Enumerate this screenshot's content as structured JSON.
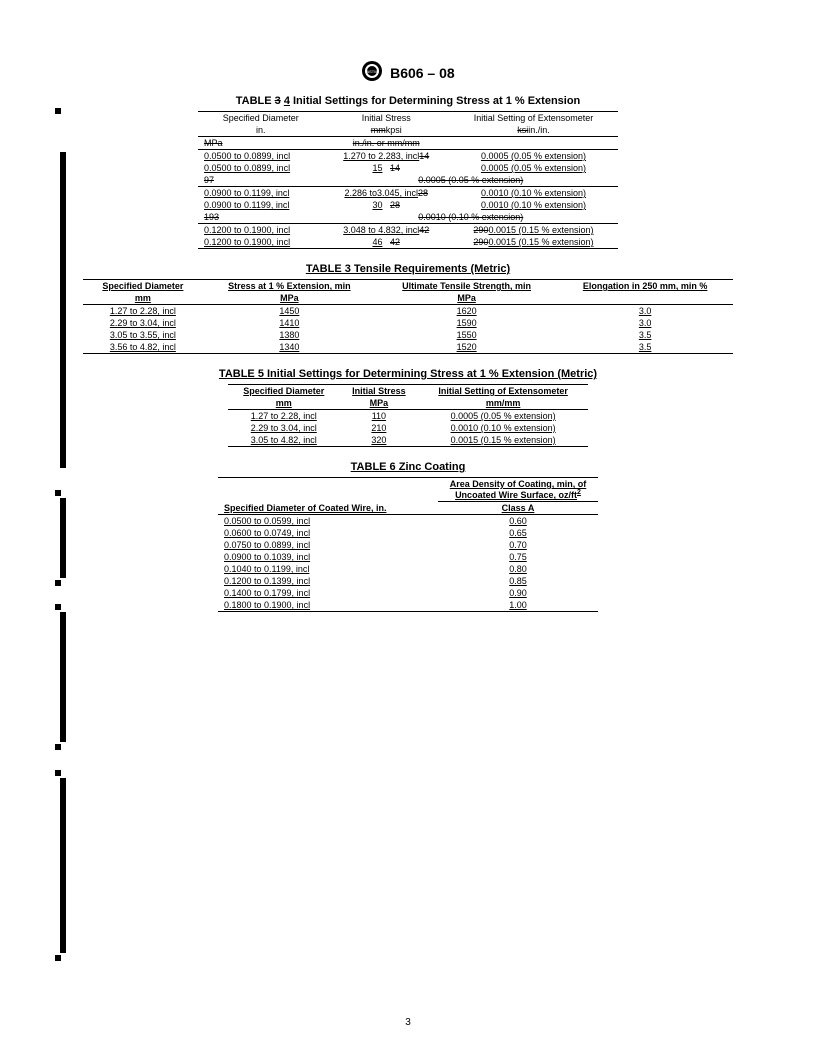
{
  "doc": {
    "designation": "B606 – 08",
    "page_number": "3"
  },
  "table4": {
    "title_prefix": "TABLE ",
    "title_old": "3",
    "title_new": "4",
    "title_rest": " Initial Settings for Determining Stress at 1 % Extension",
    "h_diam": "Specified Diameter",
    "h_diam_unit": "in.",
    "h_stress": "Initial Stress",
    "h_stress_unit_old": "mm",
    "h_stress_unit_new": "kpsi",
    "h_ext": "Initial Setting of Extensometer",
    "h_ext_unit_old": "ksi",
    "h_ext_unit_new": "in./in.",
    "del_mpa": "MPa",
    "del_unit_row": "in./in. or mm/mm",
    "rows": [
      {
        "d": "0.0500 to 0.0899, incl",
        "s": "1.270 to 2.283, incl",
        "sx": "14",
        "e": "0.0005 (0.05 % extension)",
        "kind": "u"
      },
      {
        "d": "0.0500 to 0.0899, incl",
        "s": "15",
        "sx": "14",
        "e": "0.0005 (0.05 % extension)",
        "kind": "u2"
      },
      {
        "d": "97",
        "s": "0.0005 (0.05 % extension)",
        "sx": "",
        "e": "",
        "kind": "del"
      },
      {
        "d": "0.0900 to 0.1199, incl",
        "s": "2.286 to3.045, incl",
        "sx": "28",
        "e": "0.0010 (0.10 % extension)",
        "kind": "u"
      },
      {
        "d": "0.0900 to 0.1199, incl",
        "s": "30",
        "sx": "28",
        "e": "0.0010 (0.10 % extension)",
        "kind": "u2"
      },
      {
        "d": "193",
        "s": "0.0010 (0.10 % extension)",
        "sx": "",
        "e": "",
        "kind": "del"
      },
      {
        "d": "0.1200 to 0.1900, incl",
        "s": "3.048 to 4.832, incl",
        "sx": "42",
        "e": "0.0015 (0.15 % extension)",
        "kind": "u",
        "px": "290"
      },
      {
        "d": "0.1200 to 0.1900, incl",
        "s": "46",
        "sx": "42",
        "e": "0.0015 (0.15 % extension)",
        "kind": "u2",
        "px": "290"
      }
    ]
  },
  "table3": {
    "title": "TABLE 3  Tensile Requirements (Metric)",
    "h1": "Specified Diameter",
    "h1u": "mm",
    "h2": "Stress at 1 % Extension, min",
    "h2u": "MPa",
    "h3": "Ultimate Tensile Strength, min",
    "h3u": "MPa",
    "h4": "Elongation in 250 mm, min %",
    "rows": [
      {
        "d": "1.27 to 2.28, incl",
        "s": "1450",
        "u": "1620",
        "e": "3.0"
      },
      {
        "d": "2.29 to 3.04, incl",
        "s": "1410",
        "u": "1590",
        "e": "3.0"
      },
      {
        "d": "3.05 to 3.55, incl",
        "s": "1380",
        "u": "1550",
        "e": "3.5"
      },
      {
        "d": "3.56 to 4.82, incl",
        "s": "1340",
        "u": "1520",
        "e": "3.5"
      }
    ]
  },
  "table5": {
    "title": "TABLE 5  Initial Settings for Determining Stress at 1 % Extension (Metric)",
    "h1": "Specified Diameter",
    "h1u": "mm",
    "h2": "Initial Stress",
    "h2u": "MPa",
    "h3": "Initial Setting of Extensometer",
    "h3u": "mm/mm",
    "rows": [
      {
        "d": "1.27 to 2.28, incl",
        "s": "110",
        "e": "0.0005 (0.05 % extension)"
      },
      {
        "d": "2.29 to 3.04, incl",
        "s": "210",
        "e": "0.0010 (0.10 % extension)"
      },
      {
        "d": "3.05 to 4.82, incl",
        "s": "320",
        "e": "0.0015 (0.15 % extension)"
      }
    ]
  },
  "table6": {
    "title": "TABLE 6  Zinc Coating",
    "h1": "Specified Diameter of Coated Wire, in.",
    "h2a": "Area Density of Coating, min, of Uncoated Wire Surface, oz/ft",
    "h2b": "2",
    "h_class": "Class A",
    "rows": [
      {
        "d": "0.0500 to 0.0599, incl",
        "v": "0.60"
      },
      {
        "d": "0.0600 to 0.0749, incl",
        "v": "0.65"
      },
      {
        "d": "0.0750 to 0.0899, incl",
        "v": "0.70"
      },
      {
        "d": "0.0900 to 0.1039, incl",
        "v": "0.75"
      },
      {
        "d": "0.1040 to 0.1199, incl",
        "v": "0.80"
      },
      {
        "d": "0.1200 to 0.1399, incl",
        "v": "0.85"
      },
      {
        "d": "0.1400 to 0.1799, incl",
        "v": "0.90"
      },
      {
        "d": "0.1800 to 0.1900, incl",
        "v": "1.00"
      }
    ]
  }
}
